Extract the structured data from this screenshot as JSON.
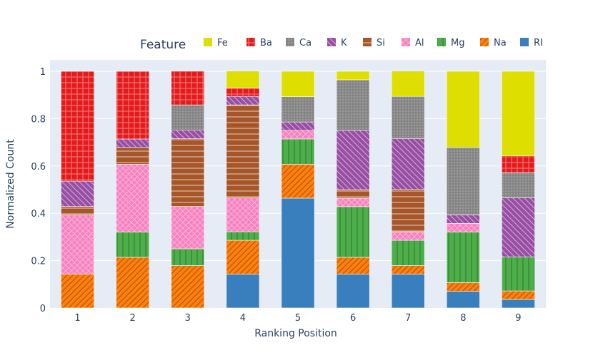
{
  "chart_data": {
    "type": "bar",
    "stacked": true,
    "normalized": true,
    "title": "",
    "xlabel": "Ranking Position",
    "ylabel": "Normalized Count",
    "ylim": [
      0,
      1
    ],
    "yticks": [
      0,
      0.2,
      0.4,
      0.6,
      0.8,
      1
    ],
    "ytick_labels": [
      "0",
      "0.2",
      "0.4",
      "0.6",
      "0.8",
      "1"
    ],
    "categories": [
      "1",
      "2",
      "3",
      "4",
      "5",
      "6",
      "7",
      "8",
      "9"
    ],
    "legend_title": "Feature",
    "legend_position": "top-right",
    "legend_order": [
      "Fe",
      "Ba",
      "Ca",
      "K",
      "Si",
      "Al",
      "Mg",
      "Na",
      "RI"
    ],
    "series": [
      {
        "name": "RI",
        "color": "#3a7fbd",
        "pattern": "solid",
        "values": [
          0,
          0,
          0,
          0.143,
          0.464,
          0.143,
          0.143,
          0.071,
          0.036
        ]
      },
      {
        "name": "Na",
        "color": "#ff7f0e",
        "pattern": "diagonal",
        "values": [
          0.143,
          0.214,
          0.179,
          0.143,
          0.143,
          0.071,
          0.036,
          0.036,
          0.036
        ]
      },
      {
        "name": "Mg",
        "color": "#4daf4a",
        "pattern": "vertical",
        "values": [
          0,
          0.107,
          0.071,
          0.036,
          0.107,
          0.214,
          0.107,
          0.214,
          0.143
        ]
      },
      {
        "name": "Al",
        "color": "#f781bf",
        "pattern": "crosshatch",
        "values": [
          0.25,
          0.286,
          0.179,
          0.143,
          0.036,
          0.036,
          0.036,
          0.036,
          0
        ]
      },
      {
        "name": "Si",
        "color": "#a65628",
        "pattern": "horizontal",
        "values": [
          0.036,
          0.071,
          0.286,
          0.393,
          0,
          0.036,
          0.179,
          0,
          0
        ]
      },
      {
        "name": "K",
        "color": "#984ea3",
        "pattern": "backslash",
        "values": [
          0.107,
          0.036,
          0.036,
          0.036,
          0.036,
          0.25,
          0.214,
          0.036,
          0.25
        ]
      },
      {
        "name": "Ca",
        "color": "#999999",
        "pattern": "grid",
        "values": [
          0,
          0,
          0.107,
          0,
          0.107,
          0.214,
          0.179,
          0.286,
          0.107
        ]
      },
      {
        "name": "Ba",
        "color": "#e41a1c",
        "pattern": "dots",
        "values": [
          0.464,
          0.286,
          0.143,
          0.036,
          0,
          0,
          0,
          0,
          0.071
        ]
      },
      {
        "name": "Fe",
        "color": "#dede00",
        "pattern": "solid",
        "values": [
          0,
          0,
          0,
          0.071,
          0.107,
          0.036,
          0.107,
          0.321,
          0.357
        ]
      }
    ]
  }
}
